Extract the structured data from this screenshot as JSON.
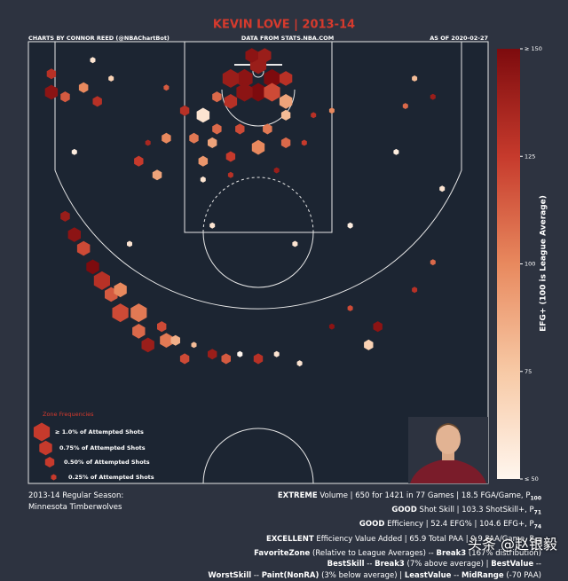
{
  "chart_data": {
    "type": "hexbin",
    "title": "KEVIN LOVE | 2013-14",
    "credit": "CHARTS BY CONNOR REED (@NBAChartBot)",
    "source": "DATA FROM STATS.NBA.COM",
    "date": "AS OF 2020-02-27",
    "colorbar_label": "EFG+ (100 is League Average)",
    "clim": [
      50,
      150
    ],
    "cticks": [
      {
        "value": 150,
        "label": "≥ 150"
      },
      125,
      100,
      75,
      {
        "value": 50,
        "label": "≤ 50"
      }
    ],
    "colormap": [
      {
        "value": 50,
        "color": "#fff6ee"
      },
      {
        "value": 75,
        "color": "#f7c9a5"
      },
      {
        "value": 100,
        "color": "#e8895e"
      },
      {
        "value": 125,
        "color": "#c63a2c"
      },
      {
        "value": 150,
        "color": "#7d0b0e"
      }
    ],
    "legend_title": "Zone Frequencies",
    "legend": [
      {
        "label": "≥ 1.0% of Attempted Shots",
        "size": 1.0
      },
      {
        "label": "0.75% of Attempted Shots",
        "size": 0.75
      },
      {
        "label": "0.50% of Attempted Shots",
        "size": 0.5
      },
      {
        "label": "0.25% of Attempted Shots",
        "size": 0.25
      }
    ],
    "hexes": {
      "x": [
        0,
        -1.5,
        1.5,
        -3,
        3,
        0,
        -1.5,
        1.5,
        -3,
        3,
        -0.7,
        0.7,
        -4.5,
        -22.5,
        -22.5,
        -21,
        -19,
        -17.5,
        -16,
        -10,
        17,
        19,
        16,
        -8,
        -6,
        -4.5,
        -7,
        -10,
        -12,
        -5,
        -2,
        1,
        3,
        0,
        3,
        -3,
        -6,
        -13,
        -11,
        -6,
        -3,
        2,
        5,
        6,
        8,
        -21,
        -20,
        -19,
        -18,
        -17,
        -16,
        -15,
        -15,
        -13,
        -13,
        -12,
        -10.5,
        -10,
        -9,
        -8,
        -7,
        -5,
        -3.5,
        -2,
        0,
        2,
        4.5,
        12,
        13,
        17,
        19,
        10,
        8,
        -18,
        -20,
        15,
        -5,
        4,
        -14,
        10,
        20
      ],
      "y": [
        2.5,
        4,
        4,
        4,
        4,
        5.5,
        5.5,
        5.5,
        6.5,
        6.5,
        1.5,
        1.5,
        6,
        3.5,
        5.5,
        6,
        5,
        6.5,
        4,
        5,
        4,
        6,
        7,
        7.5,
        8,
        9.5,
        10.5,
        10.5,
        11,
        11,
        9.5,
        9.5,
        8,
        11.5,
        11,
        12.5,
        13,
        13,
        14.5,
        15,
        14.5,
        14,
        11,
        8,
        7.5,
        19,
        21,
        22.5,
        24.5,
        26,
        27.5,
        27,
        29.5,
        29.5,
        31.5,
        33,
        31,
        32.5,
        32.5,
        34.5,
        33,
        34,
        34.5,
        34,
        34.5,
        34,
        35,
        33,
        31,
        27,
        24,
        29,
        31,
        2,
        12,
        12,
        20,
        22,
        22,
        20,
        16
      ],
      "efg": [
        140,
        145,
        150,
        140,
        130,
        150,
        145,
        120,
        130,
        90,
        145,
        140,
        110,
        130,
        145,
        115,
        100,
        130,
        70,
        115,
        80,
        140,
        110,
        130,
        60,
        110,
        105,
        100,
        135,
        90,
        120,
        105,
        80,
        100,
        110,
        125,
        95,
        125,
        90,
        60,
        130,
        140,
        125,
        130,
        100,
        140,
        145,
        120,
        150,
        130,
        115,
        100,
        120,
        105,
        110,
        140,
        120,
        105,
        85,
        120,
        80,
        140,
        115,
        50,
        130,
        60,
        60,
        70,
        145,
        130,
        110,
        120,
        145,
        60,
        55,
        55,
        60,
        60,
        60,
        55,
        60
      ],
      "size": [
        1,
        1,
        1,
        1,
        0.75,
        1,
        1,
        1,
        0.75,
        0.75,
        0.75,
        0.75,
        0.5,
        0.5,
        0.75,
        0.5,
        0.5,
        0.5,
        0.25,
        0.25,
        0.25,
        0.25,
        0.25,
        0.5,
        0.75,
        0.5,
        0.5,
        0.5,
        0.25,
        0.5,
        0.5,
        0.5,
        0.5,
        0.75,
        0.5,
        0.5,
        0.5,
        0.5,
        0.5,
        0.25,
        0.25,
        0.25,
        0.25,
        0.25,
        0.25,
        0.5,
        0.75,
        0.75,
        0.75,
        1,
        0.75,
        0.75,
        1,
        1,
        0.75,
        0.75,
        0.5,
        0.75,
        0.5,
        0.5,
        0.25,
        0.5,
        0.5,
        0.25,
        0.5,
        0.25,
        0.25,
        0.5,
        0.5,
        0.25,
        0.25,
        0.25,
        0.25,
        0.25,
        0.25,
        0.25,
        0.25,
        0.25,
        0.25,
        0.25,
        0.25
      ]
    }
  },
  "footer": {
    "season": "2013-14 Regular Season:",
    "team": "Minnesota Timberwolves",
    "lines": [
      [
        {
          "text": "EXTREME",
          "style": "bold"
        },
        {
          "text": " Volume | 650 for 1421 in 77 Games | 18.5 FGA/Game, P",
          "style": "normal"
        },
        {
          "text": "100",
          "style": "sub"
        }
      ],
      [
        {
          "text": "GOOD",
          "style": "bold"
        },
        {
          "text": " Shot Skill | 103.3 ShotSkill+, P",
          "style": "normal"
        },
        {
          "text": "71",
          "style": "sub"
        }
      ],
      [
        {
          "text": "GOOD",
          "style": "bold"
        },
        {
          "text": " Efficiency | 52.4 EFG% | 104.6 EFG+, P",
          "style": "normal"
        },
        {
          "text": "74",
          "style": "sub"
        }
      ],
      [
        {
          "text": "EXCELLENT",
          "style": "bold"
        },
        {
          "text": " Efficiency Value Added | 65.9 Total PAA | 0.9 PAA/Game, P",
          "style": "normal"
        },
        {
          "text": "89",
          "style": "sub"
        }
      ],
      [
        {
          "text": "FavoriteZone",
          "style": "bold"
        },
        {
          "text": " (Relative to League Averages) -- ",
          "style": "normal"
        },
        {
          "text": "Break3",
          "style": "bold"
        },
        {
          "text": " (167% distribution)",
          "style": "normal"
        }
      ],
      [
        {
          "text": "BestSkill",
          "style": "bold"
        },
        {
          "text": " -- ",
          "style": "normal"
        },
        {
          "text": "Break3",
          "style": "bold"
        },
        {
          "text": " (7% above average) | ",
          "style": "normal"
        },
        {
          "text": "BestValue",
          "style": "bold"
        },
        {
          "text": " --",
          "style": "normal"
        }
      ],
      [
        {
          "text": "WorstSkill",
          "style": "bold"
        },
        {
          "text": " -- ",
          "style": "normal"
        },
        {
          "text": "Paint(NonRA)",
          "style": "bold"
        },
        {
          "text": " (3% below average) | ",
          "style": "normal"
        },
        {
          "text": "LeastValue",
          "style": "bold"
        },
        {
          "text": " -- ",
          "style": "normal"
        },
        {
          "text": "MidRange",
          "style": "bold"
        },
        {
          "text": " (-70 PAA)",
          "style": "normal"
        }
      ]
    ]
  },
  "watermark": "头条 @赵银毅"
}
